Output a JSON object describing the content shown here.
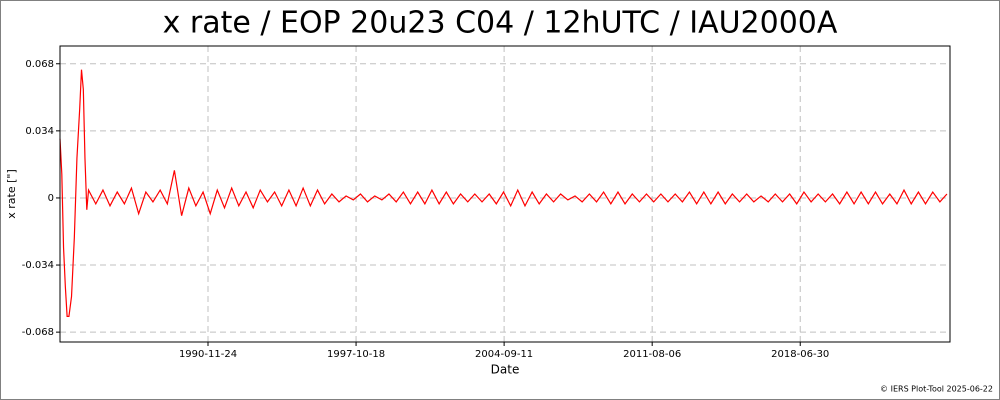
{
  "chart_data": {
    "type": "line",
    "title": "x rate / EOP 20u23 C04 / 12hUTC / IAU2000A",
    "x_label": "Date",
    "y_label": "x rate [\"]",
    "footer": "© IERS Plot-Tool 2025-06-22",
    "color": "#ff0000",
    "grid": true,
    "xlim": [
      "1984-01-01",
      "2025-06-22"
    ],
    "xticks": [
      "1990-11-24",
      "1997-10-18",
      "2004-09-11",
      "2011-08-06",
      "2018-06-30"
    ],
    "ylim": [
      -0.073,
      0.077
    ],
    "yticks": [
      -0.068,
      -0.034,
      0,
      0.034,
      0.068
    ],
    "x": [
      "1984-01-01",
      "1984-02-01",
      "1984-03-01",
      "1984-04-01",
      "1984-05-01",
      "1984-06-01",
      "1984-07-15",
      "1984-09-01",
      "1984-10-15",
      "1984-12-01",
      "1985-01-01",
      "1985-02-01",
      "1985-03-01",
      "1985-04-01",
      "1985-05-01",
      "1985-09-01",
      "1986-01-01",
      "1986-05-01",
      "1986-09-01",
      "1987-01-01",
      "1987-05-01",
      "1987-09-01",
      "1988-01-01",
      "1988-05-01",
      "1988-09-01",
      "1989-01-01",
      "1989-05-01",
      "1989-09-01",
      "1990-01-01",
      "1990-05-01",
      "1990-09-01",
      "1991-01-01",
      "1991-05-01",
      "1991-09-01",
      "1992-01-01",
      "1992-05-01",
      "1992-09-01",
      "1993-01-01",
      "1993-05-01",
      "1993-09-01",
      "1994-01-01",
      "1994-05-01",
      "1994-09-01",
      "1995-01-01",
      "1995-05-01",
      "1995-09-01",
      "1996-01-01",
      "1996-05-01",
      "1996-09-01",
      "1997-01-01",
      "1997-05-01",
      "1997-09-01",
      "1998-01-01",
      "1998-05-01",
      "1998-09-01",
      "1999-01-01",
      "1999-05-01",
      "1999-09-01",
      "2000-01-01",
      "2000-05-01",
      "2000-09-01",
      "2001-01-01",
      "2001-05-01",
      "2001-09-01",
      "2002-01-01",
      "2002-05-01",
      "2002-09-01",
      "2003-01-01",
      "2003-05-01",
      "2003-09-01",
      "2004-01-01",
      "2004-05-01",
      "2004-09-01",
      "2005-01-01",
      "2005-05-01",
      "2005-09-01",
      "2006-01-01",
      "2006-05-01",
      "2006-09-01",
      "2007-01-01",
      "2007-05-01",
      "2007-09-01",
      "2008-01-01",
      "2008-05-01",
      "2008-09-01",
      "2009-01-01",
      "2009-05-01",
      "2009-09-01",
      "2010-01-01",
      "2010-05-01",
      "2010-09-01",
      "2011-01-01",
      "2011-05-01",
      "2011-09-01",
      "2012-01-01",
      "2012-05-01",
      "2012-09-01",
      "2013-01-01",
      "2013-05-01",
      "2013-09-01",
      "2014-01-01",
      "2014-05-01",
      "2014-09-01",
      "2015-01-01",
      "2015-05-01",
      "2015-09-01",
      "2016-01-01",
      "2016-05-01",
      "2016-09-01",
      "2017-01-01",
      "2017-05-01",
      "2017-09-01",
      "2018-01-01",
      "2018-05-01",
      "2018-09-01",
      "2019-01-01",
      "2019-05-01",
      "2019-09-01",
      "2020-01-01",
      "2020-05-01",
      "2020-09-01",
      "2021-01-01",
      "2021-05-01",
      "2021-09-01",
      "2022-01-01",
      "2022-05-01",
      "2022-09-01",
      "2023-01-01",
      "2023-05-01",
      "2023-09-01",
      "2024-01-01",
      "2024-05-01",
      "2024-09-01",
      "2025-01-01",
      "2025-05-01"
    ],
    "values": [
      0.03,
      0.012,
      -0.025,
      -0.045,
      -0.06,
      -0.06,
      -0.05,
      -0.02,
      0.02,
      0.045,
      0.065,
      0.055,
      0.02,
      -0.006,
      0.004,
      -0.003,
      0.004,
      -0.004,
      0.003,
      -0.003,
      0.005,
      -0.008,
      0.003,
      -0.002,
      0.004,
      -0.003,
      0.014,
      -0.009,
      0.005,
      -0.004,
      0.003,
      -0.008,
      0.004,
      -0.005,
      0.005,
      -0.004,
      0.003,
      -0.005,
      0.004,
      -0.002,
      0.003,
      -0.004,
      0.004,
      -0.004,
      0.005,
      -0.004,
      0.004,
      -0.003,
      0.002,
      -0.002,
      0.001,
      -0.001,
      0.002,
      -0.002,
      0.001,
      -0.001,
      0.002,
      -0.002,
      0.003,
      -0.003,
      0.003,
      -0.003,
      0.004,
      -0.003,
      0.003,
      -0.003,
      0.002,
      -0.002,
      0.002,
      -0.002,
      0.002,
      -0.003,
      0.003,
      -0.004,
      0.004,
      -0.004,
      0.003,
      -0.003,
      0.002,
      -0.002,
      0.002,
      -0.001,
      0.001,
      -0.002,
      0.002,
      -0.002,
      0.003,
      -0.003,
      0.003,
      -0.003,
      0.002,
      -0.002,
      0.002,
      -0.002,
      0.002,
      -0.002,
      0.002,
      -0.002,
      0.003,
      -0.003,
      0.003,
      -0.003,
      0.003,
      -0.003,
      0.002,
      -0.002,
      0.002,
      -0.002,
      0.001,
      -0.002,
      0.002,
      -0.002,
      0.002,
      -0.003,
      0.003,
      -0.002,
      0.002,
      -0.002,
      0.002,
      -0.003,
      0.003,
      -0.003,
      0.003,
      -0.003,
      0.003,
      -0.003,
      0.002,
      -0.003,
      0.004,
      -0.003,
      0.003,
      -0.003,
      0.003,
      -0.002,
      0.002
    ]
  }
}
